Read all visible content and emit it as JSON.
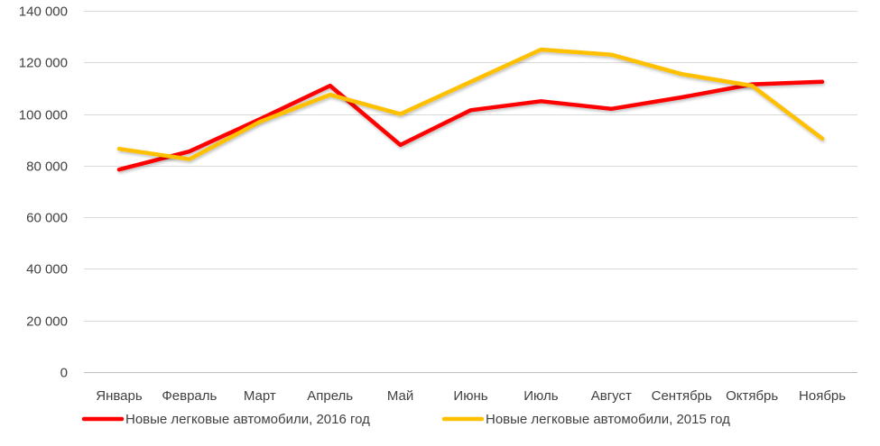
{
  "chart_data": {
    "type": "line",
    "categories": [
      "Январь",
      "Февраль",
      "Март",
      "Апрель",
      "Май",
      "Июнь",
      "Июль",
      "Август",
      "Сентябрь",
      "Октябрь",
      "Ноябрь"
    ],
    "ylim": [
      0,
      140000
    ],
    "yticks": [
      0,
      20000,
      40000,
      60000,
      80000,
      100000,
      120000,
      140000
    ],
    "ytick_labels": [
      "0",
      "20 000",
      "40 000",
      "60 000",
      "80 000",
      "100 000",
      "120 000",
      "140 000"
    ],
    "grid": true,
    "legend_position": "bottom",
    "series": [
      {
        "name": "Новые легковые автомобили, 2016 год",
        "color": "#ff0000",
        "values": [
          78500,
          85500,
          98000,
          111000,
          88000,
          101500,
          105000,
          102000,
          106500,
          111500,
          112500
        ]
      },
      {
        "name": "Новые легковые автомобили, 2015 год",
        "color": "#ffc000",
        "values": [
          86500,
          82500,
          97000,
          107500,
          100000,
          112500,
          125000,
          123000,
          115500,
          111000,
          90500
        ]
      }
    ]
  }
}
